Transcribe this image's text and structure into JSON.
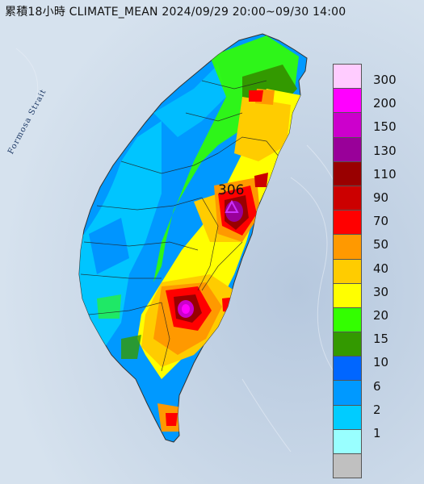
{
  "title": "累積18小時 CLIMATE_MEAN 2024/09/29 20:00~09/30 14:00",
  "map": {
    "sea_label": "Formosa Strait",
    "max_value": "306"
  },
  "legend": {
    "items": [
      {
        "label": "300",
        "color": "#ffccff"
      },
      {
        "label": "200",
        "color": "#ff00ff"
      },
      {
        "label": "150",
        "color": "#cc00cc"
      },
      {
        "label": "130",
        "color": "#990099"
      },
      {
        "label": "110",
        "color": "#990000"
      },
      {
        "label": "90",
        "color": "#cc0000"
      },
      {
        "label": "70",
        "color": "#ff0000"
      },
      {
        "label": "50",
        "color": "#ff9900"
      },
      {
        "label": "40",
        "color": "#ffcc00"
      },
      {
        "label": "30",
        "color": "#ffff00"
      },
      {
        "label": "20",
        "color": "#33ff00"
      },
      {
        "label": "15",
        "color": "#339900"
      },
      {
        "label": "10",
        "color": "#0066ff"
      },
      {
        "label": "6",
        "color": "#0099ff"
      },
      {
        "label": "2",
        "color": "#00ccff"
      },
      {
        "label": "1",
        "color": "#99ffff"
      },
      {
        "label": "",
        "color": "#c0c0c0"
      }
    ]
  }
}
